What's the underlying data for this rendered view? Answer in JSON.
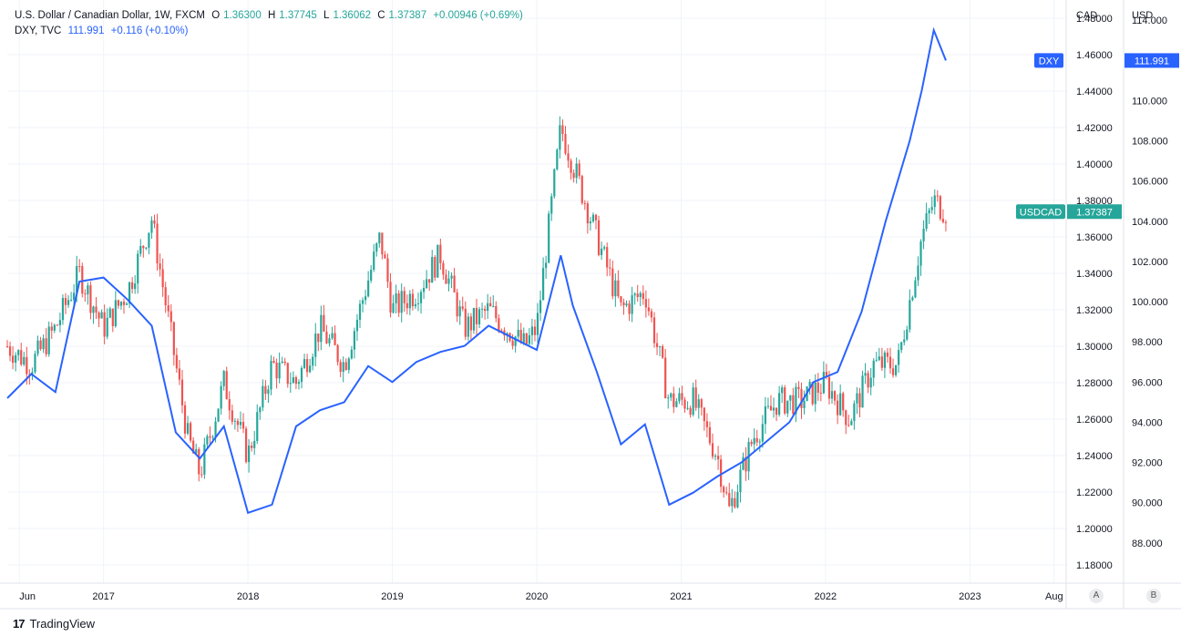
{
  "legend": {
    "main": {
      "title": "U.S. Dollar / Canadian Dollar, 1W, FXCM",
      "o_label": "O",
      "o": "1.36300",
      "h_label": "H",
      "h": "1.37745",
      "l_label": "L",
      "l": "1.36062",
      "c_label": "C",
      "c": "1.37387",
      "change": "+0.00946 (+0.69%)"
    },
    "dxy": {
      "title": "DXY, TVC",
      "value": "111.991",
      "change": "+0.116 (+0.10%)"
    }
  },
  "axes": {
    "left_scale_unit": "CAD",
    "right_scale_unit": "USD",
    "cad_ticks": [
      "1.48000",
      "1.46000",
      "1.44000",
      "1.42000",
      "1.40000",
      "1.38000",
      "1.36000",
      "1.34000",
      "1.32000",
      "1.30000",
      "1.28000",
      "1.26000",
      "1.24000",
      "1.22000",
      "1.20000",
      "1.18000"
    ],
    "usd_ticks": [
      "114.000",
      "112.000",
      "110.000",
      "108.000",
      "106.000",
      "104.000",
      "102.000",
      "100.000",
      "98.000",
      "96.000",
      "94.000",
      "92.000",
      "90.000",
      "88.000"
    ],
    "time_ticks": [
      "Jun",
      "2017",
      "2018",
      "2019",
      "2020",
      "2021",
      "2022",
      "2023",
      "Aug"
    ],
    "scale_buttons": [
      "A",
      "B"
    ]
  },
  "labels": {
    "dxy_tag": "DXY",
    "dxy_value": "111.991",
    "usdcad_tag": "USDCAD",
    "usdcad_value": "1.37387"
  },
  "footer": {
    "logo": "17",
    "brand": "TradingView"
  },
  "colors": {
    "up": "#26a69a",
    "down": "#ef5350",
    "dxy": "#2962ff",
    "grid": "#f0f3fa"
  },
  "chart_data": {
    "type": "line",
    "title": "U.S. Dollar / Canadian Dollar, 1W, FXCM vs DXY",
    "x_range": [
      "2016-05",
      "2023-09"
    ],
    "cad_range": [
      1.17,
      1.49
    ],
    "usd_range": [
      86.0,
      115.0
    ],
    "series": [
      {
        "name": "USDCAD",
        "style": "candlestick-weekly",
        "x": [
          "2016-05",
          "2016-07",
          "2016-09",
          "2016-11",
          "2017-01",
          "2017-03",
          "2017-05",
          "2017-06",
          "2017-08",
          "2017-09",
          "2017-11",
          "2018-01",
          "2018-03",
          "2018-05",
          "2018-07",
          "2018-09",
          "2018-12",
          "2019-01",
          "2019-03",
          "2019-05",
          "2019-07",
          "2019-09",
          "2019-12",
          "2020-01",
          "2020-03",
          "2020-04",
          "2020-06",
          "2020-08",
          "2020-10",
          "2020-12",
          "2021-02",
          "2021-04",
          "2021-05",
          "2021-07",
          "2021-09",
          "2021-11",
          "2022-01",
          "2022-03",
          "2022-05",
          "2022-07",
          "2022-09",
          "2022-10",
          "2022-11"
        ],
        "values": [
          1.3,
          1.29,
          1.31,
          1.34,
          1.31,
          1.33,
          1.37,
          1.33,
          1.25,
          1.23,
          1.28,
          1.24,
          1.29,
          1.28,
          1.31,
          1.29,
          1.36,
          1.32,
          1.33,
          1.35,
          1.31,
          1.32,
          1.3,
          1.31,
          1.42,
          1.4,
          1.36,
          1.32,
          1.33,
          1.27,
          1.27,
          1.24,
          1.21,
          1.25,
          1.27,
          1.27,
          1.28,
          1.26,
          1.29,
          1.29,
          1.36,
          1.38,
          1.37387
        ]
      },
      {
        "name": "DXY",
        "style": "line",
        "x": [
          "2016-05",
          "2016-07",
          "2016-09",
          "2016-11",
          "2017-01",
          "2017-03",
          "2017-05",
          "2017-07",
          "2017-09",
          "2017-11",
          "2018-01",
          "2018-03",
          "2018-05",
          "2018-07",
          "2018-09",
          "2018-11",
          "2019-01",
          "2019-03",
          "2019-05",
          "2019-07",
          "2019-09",
          "2019-11",
          "2020-01",
          "2020-03",
          "2020-04",
          "2020-06",
          "2020-08",
          "2020-10",
          "2020-12",
          "2021-02",
          "2021-04",
          "2021-06",
          "2021-08",
          "2021-10",
          "2021-12",
          "2022-02",
          "2022-04",
          "2022-06",
          "2022-08",
          "2022-09",
          "2022-10",
          "2022-11"
        ],
        "values": [
          95.2,
          96.4,
          95.5,
          101.0,
          101.2,
          100.1,
          98.8,
          93.5,
          92.2,
          93.8,
          89.5,
          89.9,
          93.8,
          94.6,
          95.0,
          96.8,
          96.0,
          97.0,
          97.5,
          97.8,
          98.8,
          98.2,
          97.6,
          102.3,
          99.8,
          96.5,
          92.9,
          93.9,
          89.9,
          90.5,
          91.3,
          92.0,
          93.0,
          94.0,
          96.0,
          96.5,
          99.5,
          104.0,
          108.0,
          110.5,
          113.5,
          111.991
        ]
      }
    ],
    "xlabel": "",
    "ylabel_left": "CAD",
    "ylabel_right": "USD",
    "grid": true
  }
}
